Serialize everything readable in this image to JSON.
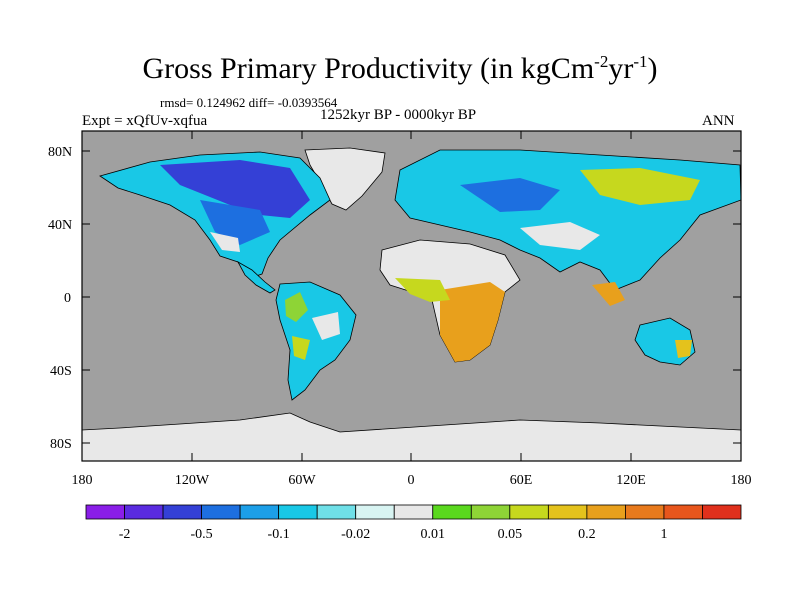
{
  "title": {
    "main": "Gross Primary Productivity (in kgCm",
    "sup1": "-2",
    "mid": "yr",
    "sup2": "-1",
    "end": ")"
  },
  "stats": "rmsd= 0.124962 diff= -0.0393564",
  "experiment": "Expt = xQfUv-xqfua",
  "period": "1252kyr BP - 0000kyr BP",
  "season": "ANN",
  "axes": {
    "lat_ticks": [
      "80N",
      "40N",
      "0",
      "40S",
      "80S"
    ],
    "lon_ticks": [
      "180",
      "120W",
      "60W",
      "0",
      "60E",
      "120E",
      "180"
    ]
  },
  "colorbar": {
    "labels": [
      "-2",
      "-0.5",
      "-0.1",
      "-0.02",
      "0.01",
      "0.05",
      "0.2",
      "1"
    ],
    "colors": [
      "#8a1ee8",
      "#5a2be0",
      "#3440d6",
      "#1d6fe0",
      "#1c9fe8",
      "#19c8e6",
      "#6fe0e8",
      "#d8f4f2",
      "#e8e8e8",
      "#5ad81e",
      "#8ed436",
      "#c6d81e",
      "#e4c21c",
      "#e8a01c",
      "#e87a1c",
      "#e8561c",
      "#e0301c"
    ]
  },
  "colors": {
    "ocean": "#a0a0a0",
    "no_change": "#e8e8e8",
    "coastline": "#000000"
  }
}
